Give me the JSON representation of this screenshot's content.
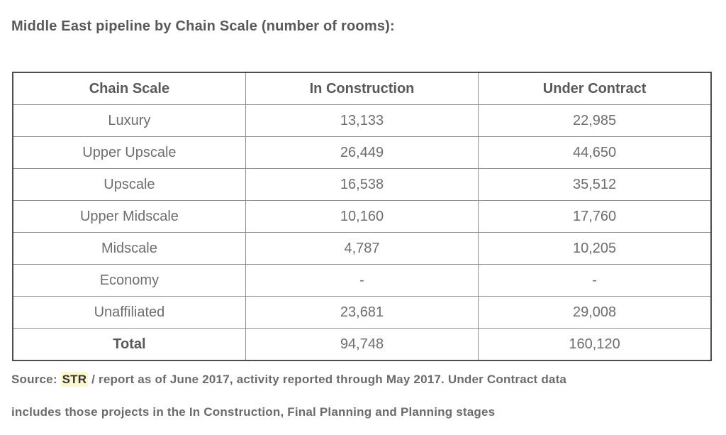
{
  "title": "Middle East pipeline by Chain Scale (number of rooms):",
  "table": {
    "columns": [
      "Chain Scale",
      "In Construction",
      "Under Contract"
    ],
    "rows": [
      [
        "Luxury",
        "13,133",
        "22,985"
      ],
      [
        "Upper Upscale",
        "26,449",
        "44,650"
      ],
      [
        "Upscale",
        "16,538",
        "35,512"
      ],
      [
        "Upper Midscale",
        "10,160",
        "17,760"
      ],
      [
        "Midscale",
        "4,787",
        "10,205"
      ],
      [
        "Economy",
        "-",
        "-"
      ],
      [
        "Unaffiliated",
        "23,681",
        "29,008"
      ],
      [
        "Total",
        "94,748",
        "160,120"
      ]
    ]
  },
  "footer": {
    "source_prefix": "Source: ",
    "source_highlight": "STR",
    "line1_rest": " / report as of June 2017, activity reported through May 2017. Under Contract data",
    "line2": "includes those projects in the In Construction, Final Planning and Planning stages"
  },
  "colors": {
    "title_text": "#595959",
    "cell_text": "#6e6e6e",
    "border_outer": "#4d4d4d",
    "border_inner": "#8f8f8f",
    "highlight_bg": "#fcf8cc",
    "highlight_text": "#333333"
  },
  "chart_data": {
    "type": "table",
    "title": "Middle East pipeline by Chain Scale (number of rooms)",
    "categories": [
      "Luxury",
      "Upper Upscale",
      "Upscale",
      "Upper Midscale",
      "Midscale",
      "Economy",
      "Unaffiliated",
      "Total"
    ],
    "series": [
      {
        "name": "In Construction",
        "values": [
          13133,
          26449,
          16538,
          10160,
          4787,
          null,
          23681,
          94748
        ]
      },
      {
        "name": "Under Contract",
        "values": [
          22985,
          44650,
          35512,
          17760,
          10205,
          null,
          29008,
          160120
        ]
      }
    ],
    "missing_value_display": "-"
  }
}
